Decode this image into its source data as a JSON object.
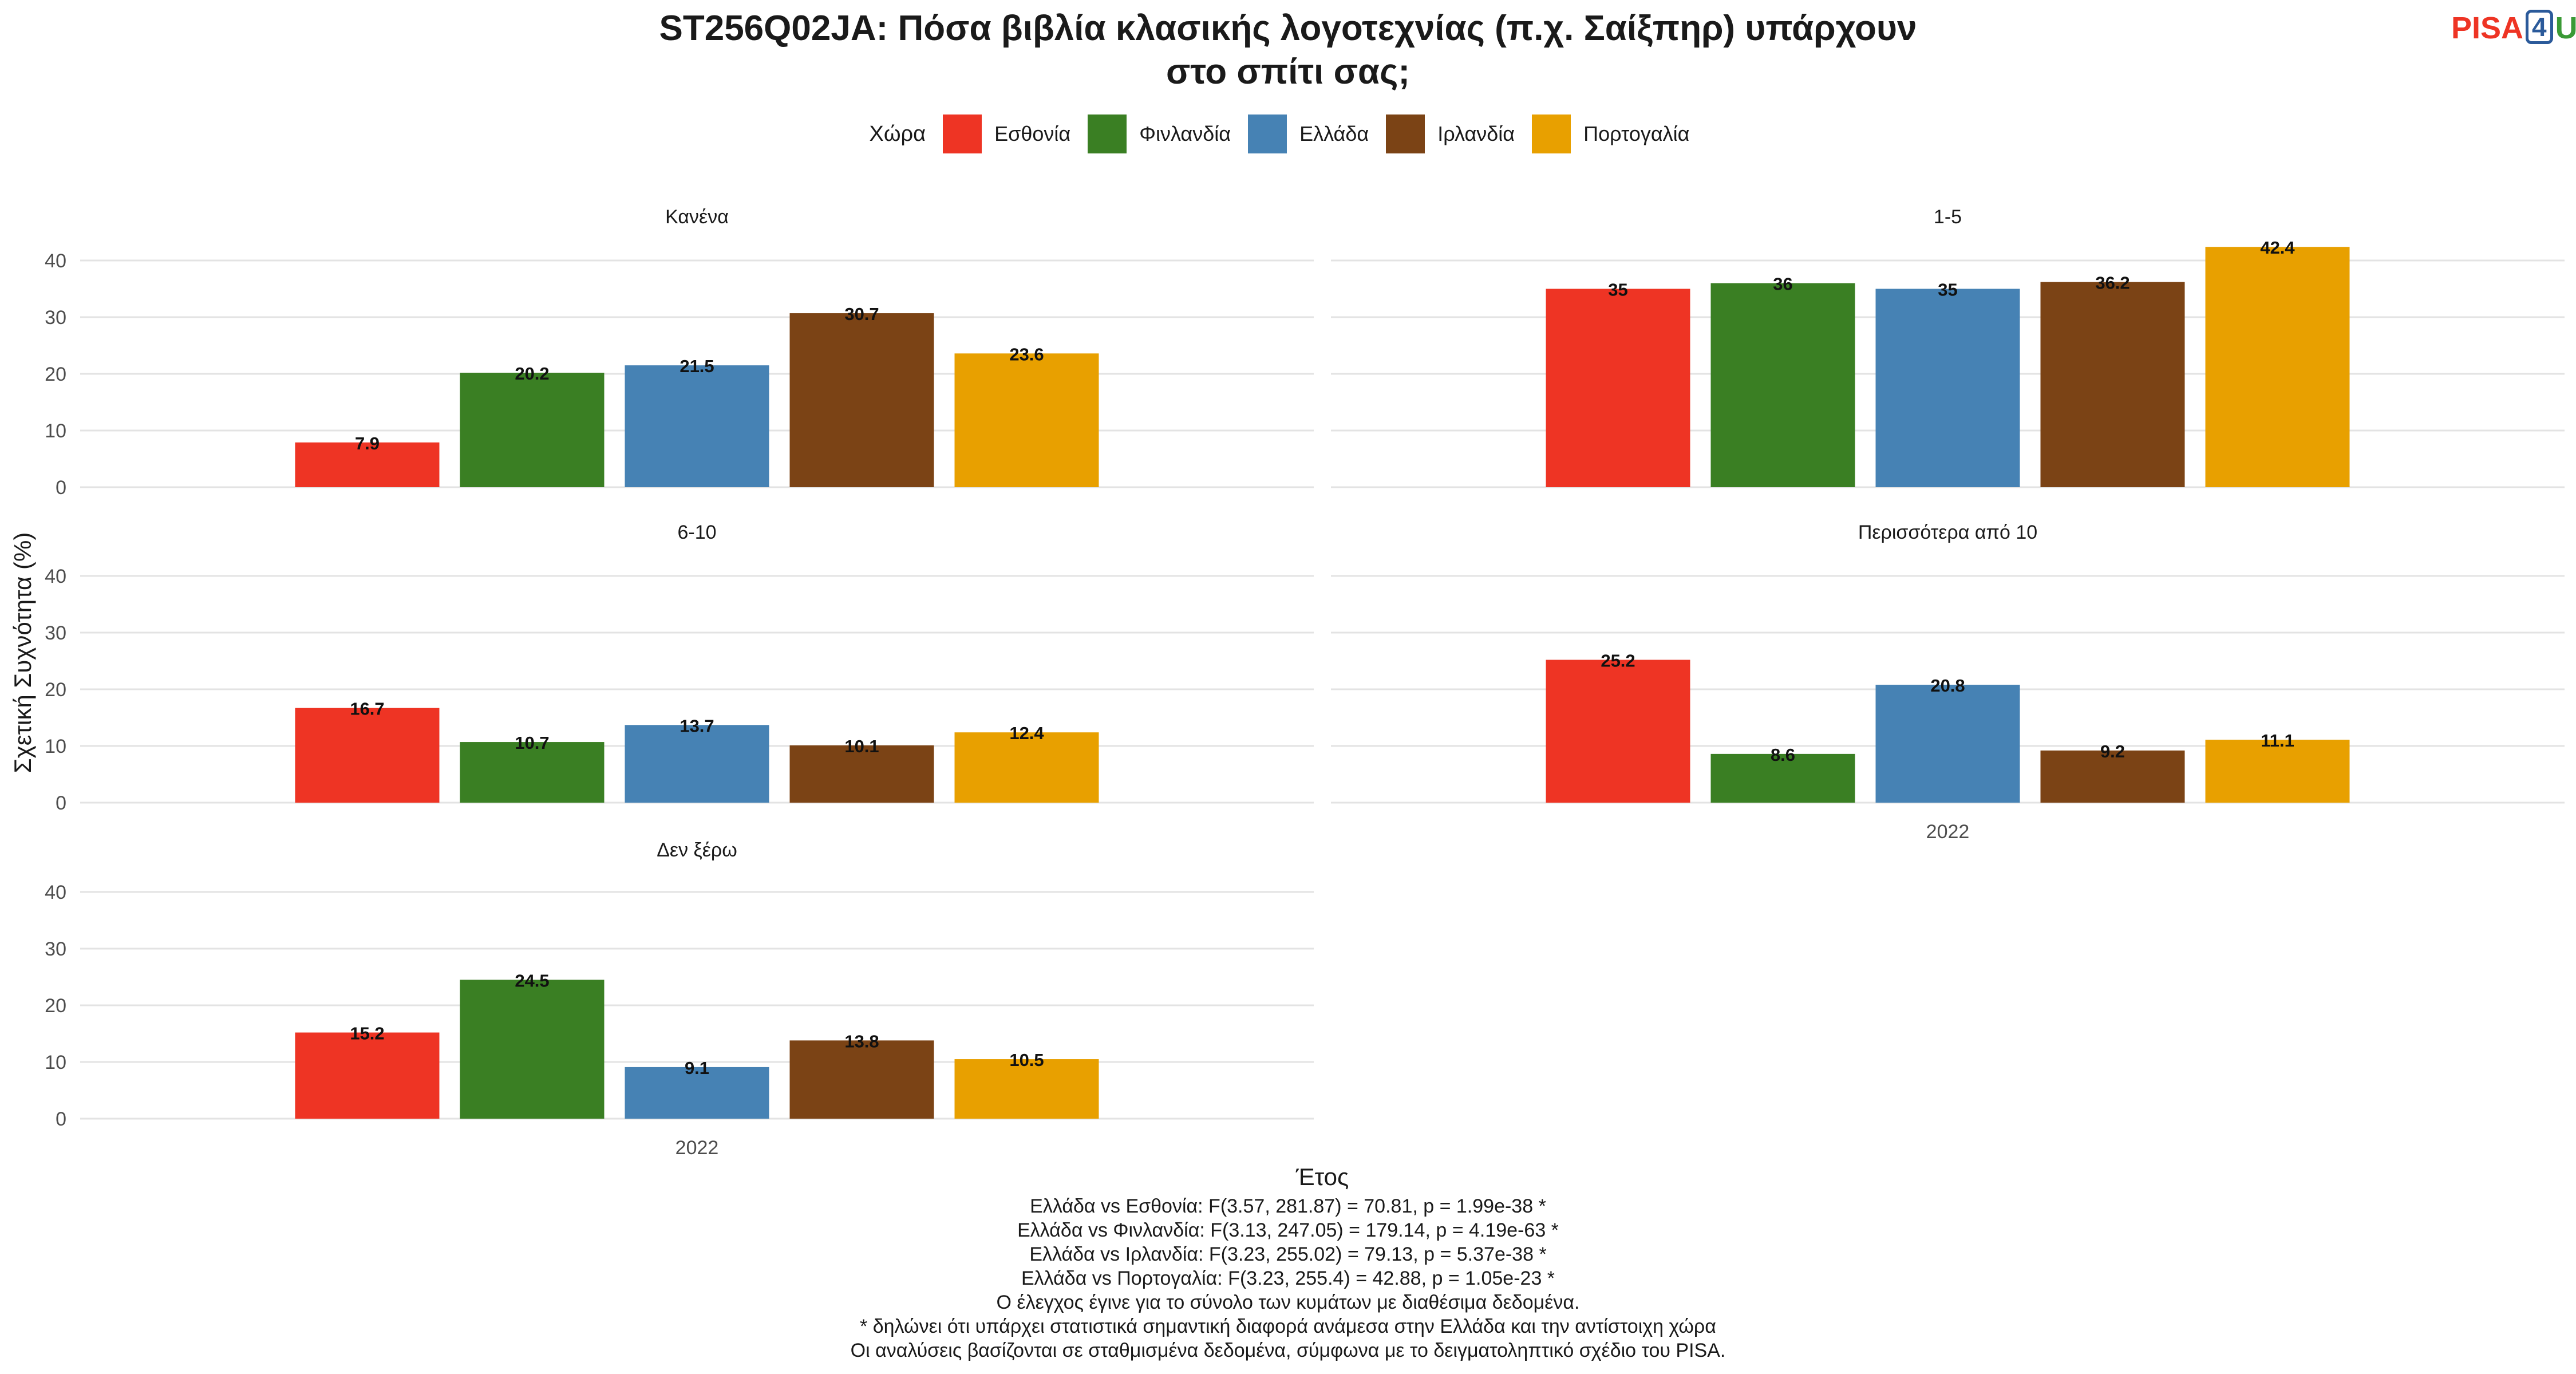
{
  "title": {
    "line1": "ST256Q02JA: Πόσα βιβλία κλασικής λογοτεχνίας (π.χ. Σαίξπηρ) υπάρχουν",
    "line2": "στο σπίτι σας;"
  },
  "logo": {
    "part1": "PISA",
    "part2": "4",
    "part3": "U"
  },
  "legend": {
    "title": "Χώρα"
  },
  "notes": [
    "Ελλάδα vs Εσθονία: F(3.57, 281.87) = 70.81, p = 1.99e-38 *",
    "Ελλάδα vs Φινλανδία: F(3.13, 247.05) = 179.14, p = 4.19e-63 *",
    "Ελλάδα vs Ιρλανδία: F(3.23, 255.02) = 79.13, p = 5.37e-38 *",
    "Ελλάδα vs Πορτογαλία: F(3.23, 255.4) = 42.88, p = 1.05e-23 *",
    "Ο έλεγχος έγινε για το σύνολο των κυμάτων με διαθέσιμα δεδομένα.",
    "* δηλώνει ότι υπάρχει στατιστικά σημαντική διαφορά ανάμεσα στην Ελλάδα και την αντίστοιχη χώρα",
    "Οι αναλύσεις βασίζονται σε σταθμισμένα δεδομένα, σύμφωνα με το δειγματοληπτικό σχέδιο του PISA."
  ],
  "chart_data": {
    "type": "bar",
    "xlabel": "Έτος",
    "ylabel": "Σχετική Συχνότητα (%)",
    "ylim": [
      0,
      40
    ],
    "yticks": [
      0,
      10,
      20,
      30,
      40
    ],
    "grid": true,
    "legend_position": "top",
    "categories": [
      "2022"
    ],
    "series": [
      {
        "name": "Εσθονία",
        "color": "#ee3424"
      },
      {
        "name": "Φινλανδία",
        "color": "#3a7f23"
      },
      {
        "name": "Ελλάδα",
        "color": "#4682b4"
      },
      {
        "name": "Ιρλανδία",
        "color": "#7b4315"
      },
      {
        "name": "Πορτογαλία",
        "color": "#e8a000"
      }
    ],
    "facets": [
      {
        "label": "Κανένα",
        "values": [
          7.9,
          20.2,
          21.5,
          30.7,
          23.6
        ]
      },
      {
        "label": "1-5",
        "values": [
          35,
          36,
          35,
          36.2,
          42.4
        ]
      },
      {
        "label": "6-10",
        "values": [
          16.7,
          10.7,
          13.7,
          10.1,
          12.4
        ]
      },
      {
        "label": "Περισσότερα από 10",
        "values": [
          25.2,
          8.6,
          20.8,
          9.2,
          11.1
        ]
      },
      {
        "label": "Δεν ξέρω",
        "values": [
          15.2,
          24.5,
          9.1,
          13.8,
          10.5
        ]
      }
    ]
  }
}
